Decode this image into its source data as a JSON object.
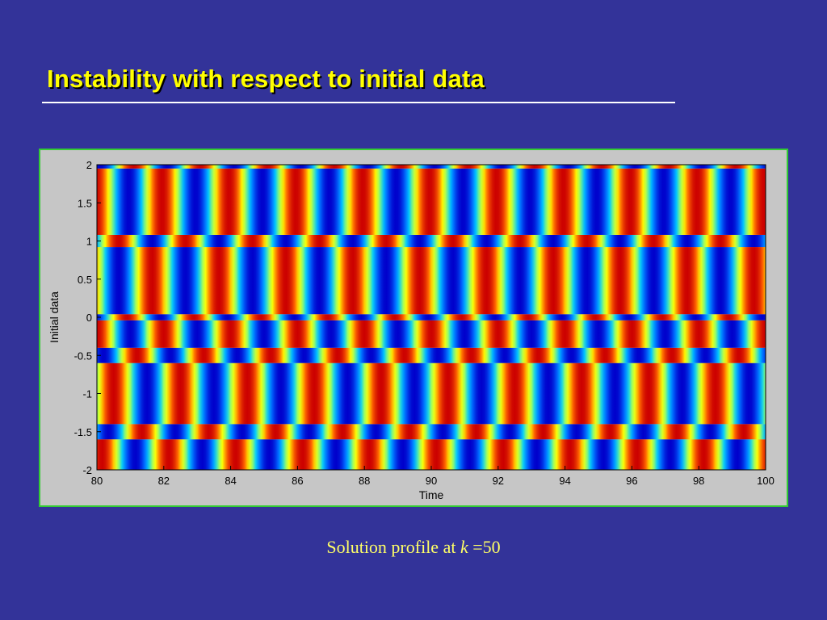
{
  "slide": {
    "title": "Instability with respect to initial data",
    "caption_prefix": "Solution profile at ",
    "caption_var": "k",
    "caption_suffix": " =50"
  },
  "chart_data": {
    "type": "heatmap",
    "title": "",
    "xlabel": "Time",
    "ylabel": "Initial data",
    "xlim": [
      80,
      100
    ],
    "ylim": [
      -2,
      2
    ],
    "xticks": [
      "80",
      "82",
      "84",
      "86",
      "88",
      "90",
      "92",
      "94",
      "96",
      "98",
      "100"
    ],
    "yticks": [
      "-2",
      "-1.5",
      "-1",
      "-0.5",
      "0",
      "0.5",
      "1",
      "1.5",
      "2"
    ],
    "colormap": "jet",
    "colormap_colors": [
      "#0000cc",
      "#0066ff",
      "#00ccff",
      "#99ff66",
      "#ffff00",
      "#ff6600",
      "#cc0000"
    ],
    "period": 2.0,
    "bands": [
      {
        "y": [
          -2.0,
          -1.6
        ],
        "phase": 0.35,
        "amp": 1.0
      },
      {
        "y": [
          -1.6,
          -1.4
        ],
        "phase": 1.15,
        "amp": 1.0
      },
      {
        "y": [
          -1.4,
          -0.6
        ],
        "phase": 0.0,
        "amp": 1.0
      },
      {
        "y": [
          -0.6,
          -0.4
        ],
        "phase": 1.3,
        "amp": 1.0
      },
      {
        "y": [
          -0.4,
          -0.04
        ],
        "phase": 0.5,
        "amp": 1.0
      },
      {
        "y": [
          -0.04,
          0.04
        ],
        "phase": 1.6,
        "amp": 1.0
      },
      {
        "y": [
          0.04,
          0.92
        ],
        "phase": 0.85,
        "amp": 1.0
      },
      {
        "y": [
          0.92,
          1.08
        ],
        "phase": 1.85,
        "amp": 1.0
      },
      {
        "y": [
          1.08,
          1.95
        ],
        "phase": 0.55,
        "amp": 1.0
      },
      {
        "y": [
          1.95,
          2.0
        ],
        "phase": 1.4,
        "amp": 1.0
      }
    ]
  }
}
